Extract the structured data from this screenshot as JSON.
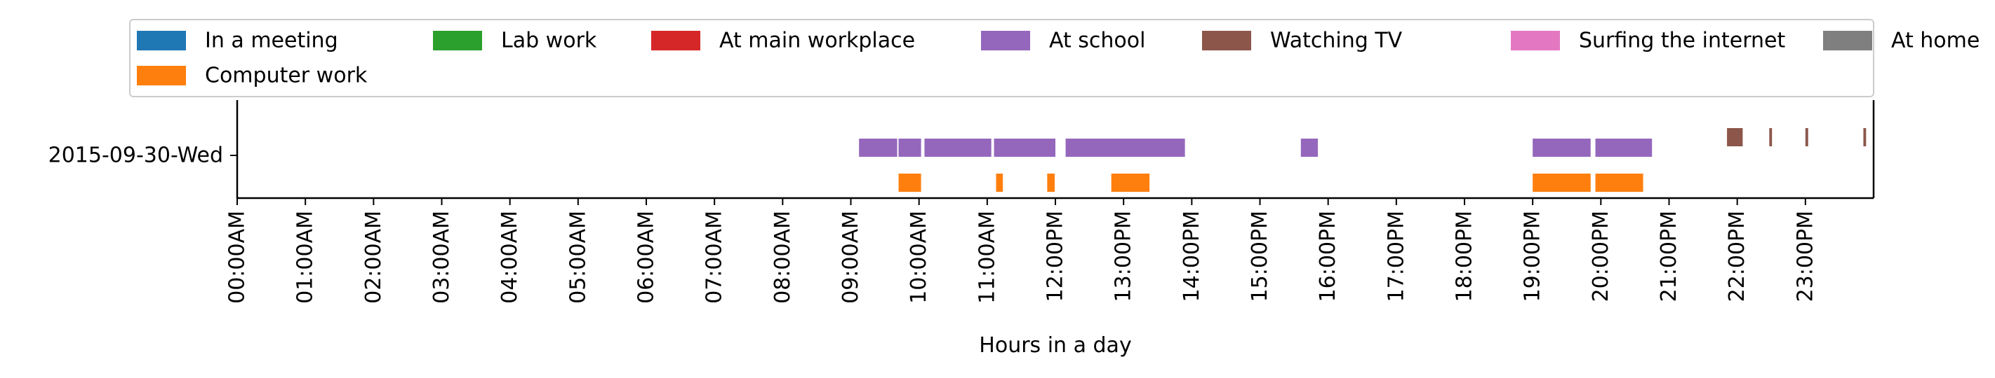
{
  "chart_data": {
    "type": "timeline",
    "xlabel": "Hours in a day",
    "xlim": [
      0,
      24
    ],
    "x_tick_labels": [
      "00:00AM",
      "01:00AM",
      "02:00AM",
      "03:00AM",
      "04:00AM",
      "05:00AM",
      "06:00AM",
      "07:00AM",
      "08:00AM",
      "09:00AM",
      "10:00AM",
      "11:00AM",
      "12:00PM",
      "13:00PM",
      "14:00PM",
      "15:00PM",
      "16:00PM",
      "17:00PM",
      "18:00PM",
      "19:00PM",
      "20:00PM",
      "21:00PM",
      "22:00PM",
      "23:00PM"
    ],
    "y_tick_labels": [
      "2015-09-30-Wed"
    ],
    "legend_position": "top",
    "legend": [
      {
        "name": "In a meeting",
        "color": "#1f77b4"
      },
      {
        "name": "Lab work",
        "color": "#2ca02c"
      },
      {
        "name": "At main workplace",
        "color": "#d62728"
      },
      {
        "name": "At school",
        "color": "#9467bd"
      },
      {
        "name": "Watching TV",
        "color": "#8c564b"
      },
      {
        "name": "Surfing the internet",
        "color": "#e377c2"
      },
      {
        "name": "At home",
        "color": "#7f7f7f"
      },
      {
        "name": "Computer work",
        "color": "#ff7f0e"
      }
    ],
    "series": [
      {
        "name": "At school",
        "color": "#9467bd",
        "lane": "upper",
        "intervals": [
          [
            9.12,
            9.68
          ],
          [
            9.7,
            10.03
          ],
          [
            10.08,
            11.06
          ],
          [
            11.1,
            12.0
          ],
          [
            12.15,
            13.9
          ],
          [
            15.6,
            15.85
          ],
          [
            19.0,
            19.85
          ],
          [
            19.92,
            20.75
          ]
        ]
      },
      {
        "name": "Watching TV",
        "color": "#8c564b",
        "lane": "top",
        "intervals": [
          [
            21.85,
            22.08
          ],
          [
            22.47,
            22.51
          ],
          [
            23.0,
            23.04
          ],
          [
            23.85,
            23.89
          ]
        ]
      },
      {
        "name": "Computer work",
        "color": "#ff7f0e",
        "lane": "lower",
        "intervals": [
          [
            9.7,
            10.03
          ],
          [
            11.13,
            11.23
          ],
          [
            11.88,
            11.99
          ],
          [
            12.82,
            13.38
          ],
          [
            19.0,
            19.85
          ],
          [
            19.92,
            20.62
          ]
        ]
      }
    ]
  }
}
